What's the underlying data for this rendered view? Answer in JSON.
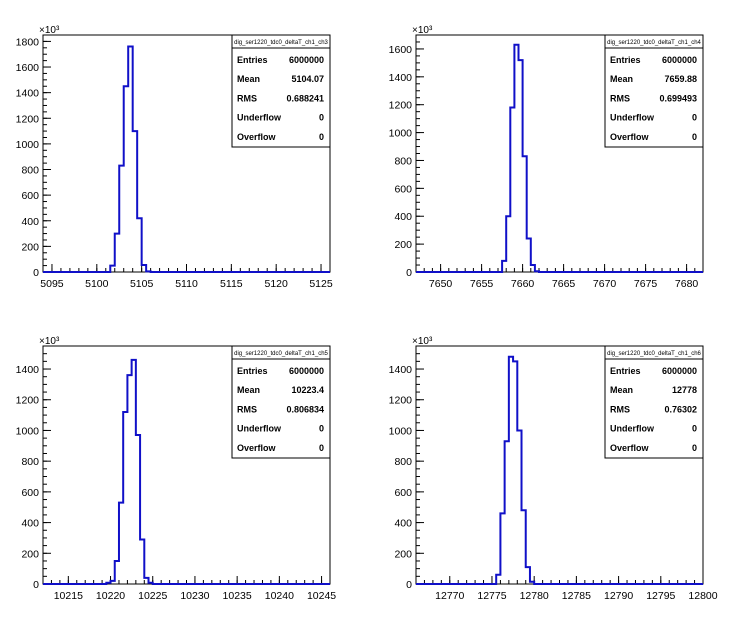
{
  "colors": {
    "histogram": "#1010c8",
    "axis": "#000000",
    "background": "#ffffff"
  },
  "chart_data": [
    {
      "type": "histogram",
      "title": "dig_ser1220_tdc0_deltaT_ch1_ch3",
      "y_multiplier": "×10³",
      "xlim": [
        5094,
        5126
      ],
      "ylim": [
        0,
        1850
      ],
      "x_ticks": [
        5095,
        5100,
        5105,
        5110,
        5115,
        5120,
        5125
      ],
      "y_ticks": [
        0,
        200,
        400,
        600,
        800,
        1000,
        1200,
        1400,
        1600,
        1800
      ],
      "bin_width": 0.5,
      "bins": [
        {
          "x": 5101.5,
          "y": 50
        },
        {
          "x": 5102.0,
          "y": 300
        },
        {
          "x": 5102.5,
          "y": 830
        },
        {
          "x": 5103.0,
          "y": 1450
        },
        {
          "x": 5103.5,
          "y": 1760
        },
        {
          "x": 5104.0,
          "y": 1100
        },
        {
          "x": 5104.5,
          "y": 420
        },
        {
          "x": 5105.0,
          "y": 55
        },
        {
          "x": 5105.5,
          "y": 5
        }
      ],
      "stats": [
        {
          "label": "Entries",
          "value": "6000000"
        },
        {
          "label": "Mean",
          "value": "5104.07"
        },
        {
          "label": "RMS",
          "value": "0.688241"
        },
        {
          "label": "Underflow",
          "value": "0"
        },
        {
          "label": "Overflow",
          "value": "0"
        }
      ]
    },
    {
      "type": "histogram",
      "title": "dig_ser1220_tdc0_deltaT_ch1_ch4",
      "y_multiplier": "×10³",
      "xlim": [
        7647,
        7682
      ],
      "ylim": [
        0,
        1700
      ],
      "x_ticks": [
        7650,
        7655,
        7660,
        7665,
        7670,
        7675,
        7680
      ],
      "y_ticks": [
        0,
        200,
        400,
        600,
        800,
        1000,
        1200,
        1400,
        1600
      ],
      "bin_width": 0.5,
      "bins": [
        {
          "x": 7657.5,
          "y": 80
        },
        {
          "x": 7658.0,
          "y": 400
        },
        {
          "x": 7658.5,
          "y": 1180
        },
        {
          "x": 7659.0,
          "y": 1630
        },
        {
          "x": 7659.5,
          "y": 1520
        },
        {
          "x": 7660.0,
          "y": 830
        },
        {
          "x": 7660.5,
          "y": 240
        },
        {
          "x": 7661.0,
          "y": 50
        },
        {
          "x": 7661.5,
          "y": 5
        }
      ],
      "stats": [
        {
          "label": "Entries",
          "value": "6000000"
        },
        {
          "label": "Mean",
          "value": "7659.88"
        },
        {
          "label": "RMS",
          "value": "0.699493"
        },
        {
          "label": "Underflow",
          "value": "0"
        },
        {
          "label": "Overflow",
          "value": "0"
        }
      ]
    },
    {
      "type": "histogram",
      "title": "dig_ser1220_tdc0_deltaT_ch1_ch5",
      "y_multiplier": "×10³",
      "xlim": [
        10212,
        10246
      ],
      "ylim": [
        0,
        1550
      ],
      "x_ticks": [
        10215,
        10220,
        10225,
        10230,
        10235,
        10240,
        10245
      ],
      "y_ticks": [
        0,
        200,
        400,
        600,
        800,
        1000,
        1200,
        1400
      ],
      "bin_width": 0.5,
      "bins": [
        {
          "x": 10219.5,
          "y": 8
        },
        {
          "x": 10220.0,
          "y": 20
        },
        {
          "x": 10220.5,
          "y": 150
        },
        {
          "x": 10221.0,
          "y": 530
        },
        {
          "x": 10221.5,
          "y": 1120
        },
        {
          "x": 10222.0,
          "y": 1360
        },
        {
          "x": 10222.5,
          "y": 1460
        },
        {
          "x": 10223.0,
          "y": 970
        },
        {
          "x": 10223.5,
          "y": 290
        },
        {
          "x": 10224.0,
          "y": 40
        },
        {
          "x": 10224.5,
          "y": 8
        }
      ],
      "stats": [
        {
          "label": "Entries",
          "value": "6000000"
        },
        {
          "label": "Mean",
          "value": "10223.4"
        },
        {
          "label": "RMS",
          "value": "0.806834"
        },
        {
          "label": "Underflow",
          "value": "0"
        },
        {
          "label": "Overflow",
          "value": "0"
        }
      ]
    },
    {
      "type": "histogram",
      "title": "dig_ser1220_tdc0_deltaT_ch1_ch6",
      "y_multiplier": "×10³",
      "xlim": [
        12766,
        12800
      ],
      "ylim": [
        0,
        1550
      ],
      "x_ticks": [
        12770,
        12775,
        12780,
        12785,
        12790,
        12795,
        12800
      ],
      "y_ticks": [
        0,
        200,
        400,
        600,
        800,
        1000,
        1200,
        1400
      ],
      "bin_width": 0.5,
      "bins": [
        {
          "x": 12775.5,
          "y": 60
        },
        {
          "x": 12776.0,
          "y": 460
        },
        {
          "x": 12776.5,
          "y": 930
        },
        {
          "x": 12777.0,
          "y": 1480
        },
        {
          "x": 12777.5,
          "y": 1450
        },
        {
          "x": 12778.0,
          "y": 1000
        },
        {
          "x": 12778.5,
          "y": 480
        },
        {
          "x": 12779.0,
          "y": 110
        },
        {
          "x": 12779.5,
          "y": 15
        }
      ],
      "stats": [
        {
          "label": "Entries",
          "value": "6000000"
        },
        {
          "label": "Mean",
          "value": "12778"
        },
        {
          "label": "RMS",
          "value": "0.76302"
        },
        {
          "label": "Underflow",
          "value": "0"
        },
        {
          "label": "Overflow",
          "value": "0"
        }
      ]
    }
  ]
}
